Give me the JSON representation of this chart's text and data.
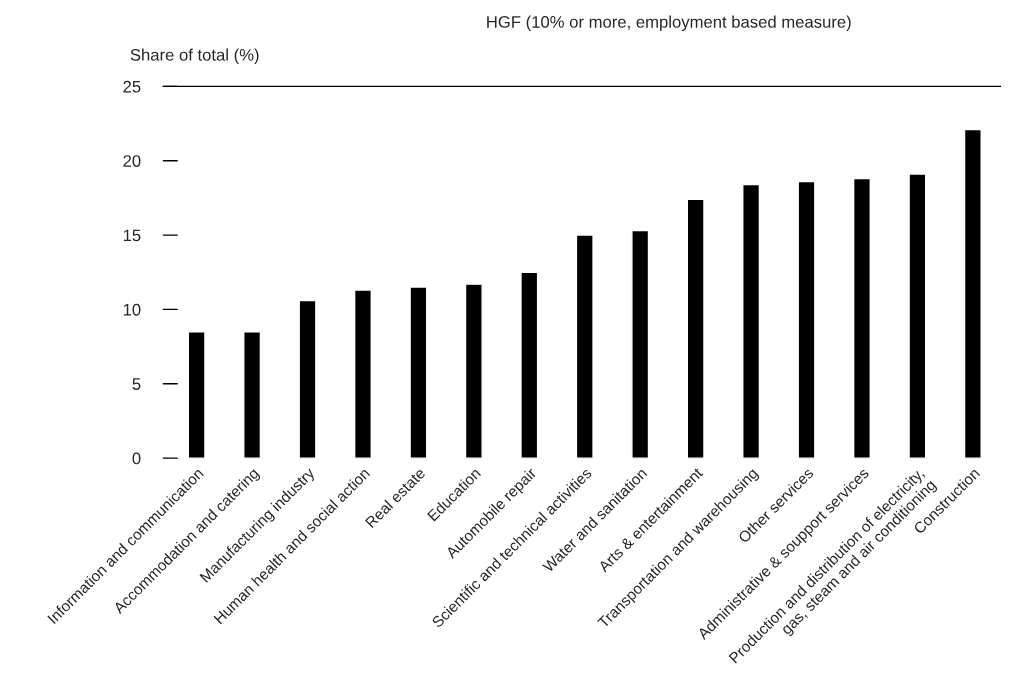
{
  "chart_data": {
    "type": "bar",
    "title": "HGF (10% or more, employment based measure)",
    "ylabel": "Share of total (%)",
    "categories": [
      "Information and communication",
      "Accommodation and catering",
      "Manufacturing industry",
      "Human health and social action",
      "Real estate",
      "Education",
      "Automobile repair",
      "Scientific and technical activities",
      "Water and sanitation",
      "Arts & entertainment",
      "Transportation and warehousing",
      "Other services",
      "Administrative & soupport services",
      "Production and distribution of electricity,\ngas, steam and air conditioning",
      "Construction"
    ],
    "values": [
      8.5,
      8.5,
      10.6,
      11.3,
      11.5,
      11.7,
      12.5,
      15.0,
      15.3,
      17.4,
      18.4,
      18.6,
      18.8,
      19.1,
      22.1
    ],
    "color": "#000000",
    "ylim": [
      0,
      25
    ],
    "yticks": [
      0,
      5,
      10,
      15,
      20,
      25
    ],
    "grid": false
  }
}
